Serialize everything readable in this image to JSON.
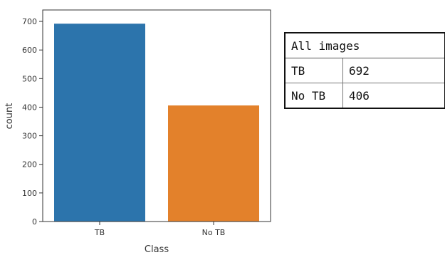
{
  "chart_data": {
    "type": "bar",
    "categories": [
      "TB",
      "No TB"
    ],
    "values": [
      692,
      406
    ],
    "colors": [
      "#2c74ac",
      "#e3812b"
    ],
    "xlabel": "Class",
    "ylabel": "count",
    "ylim": [
      0,
      740
    ],
    "yticks": [
      0,
      100,
      200,
      300,
      400,
      500,
      600,
      700
    ],
    "grid": false,
    "legend": "none"
  },
  "table": {
    "header": "All images",
    "rows": [
      {
        "label": "TB",
        "value": "692"
      },
      {
        "label": "No TB",
        "value": "406"
      }
    ]
  }
}
